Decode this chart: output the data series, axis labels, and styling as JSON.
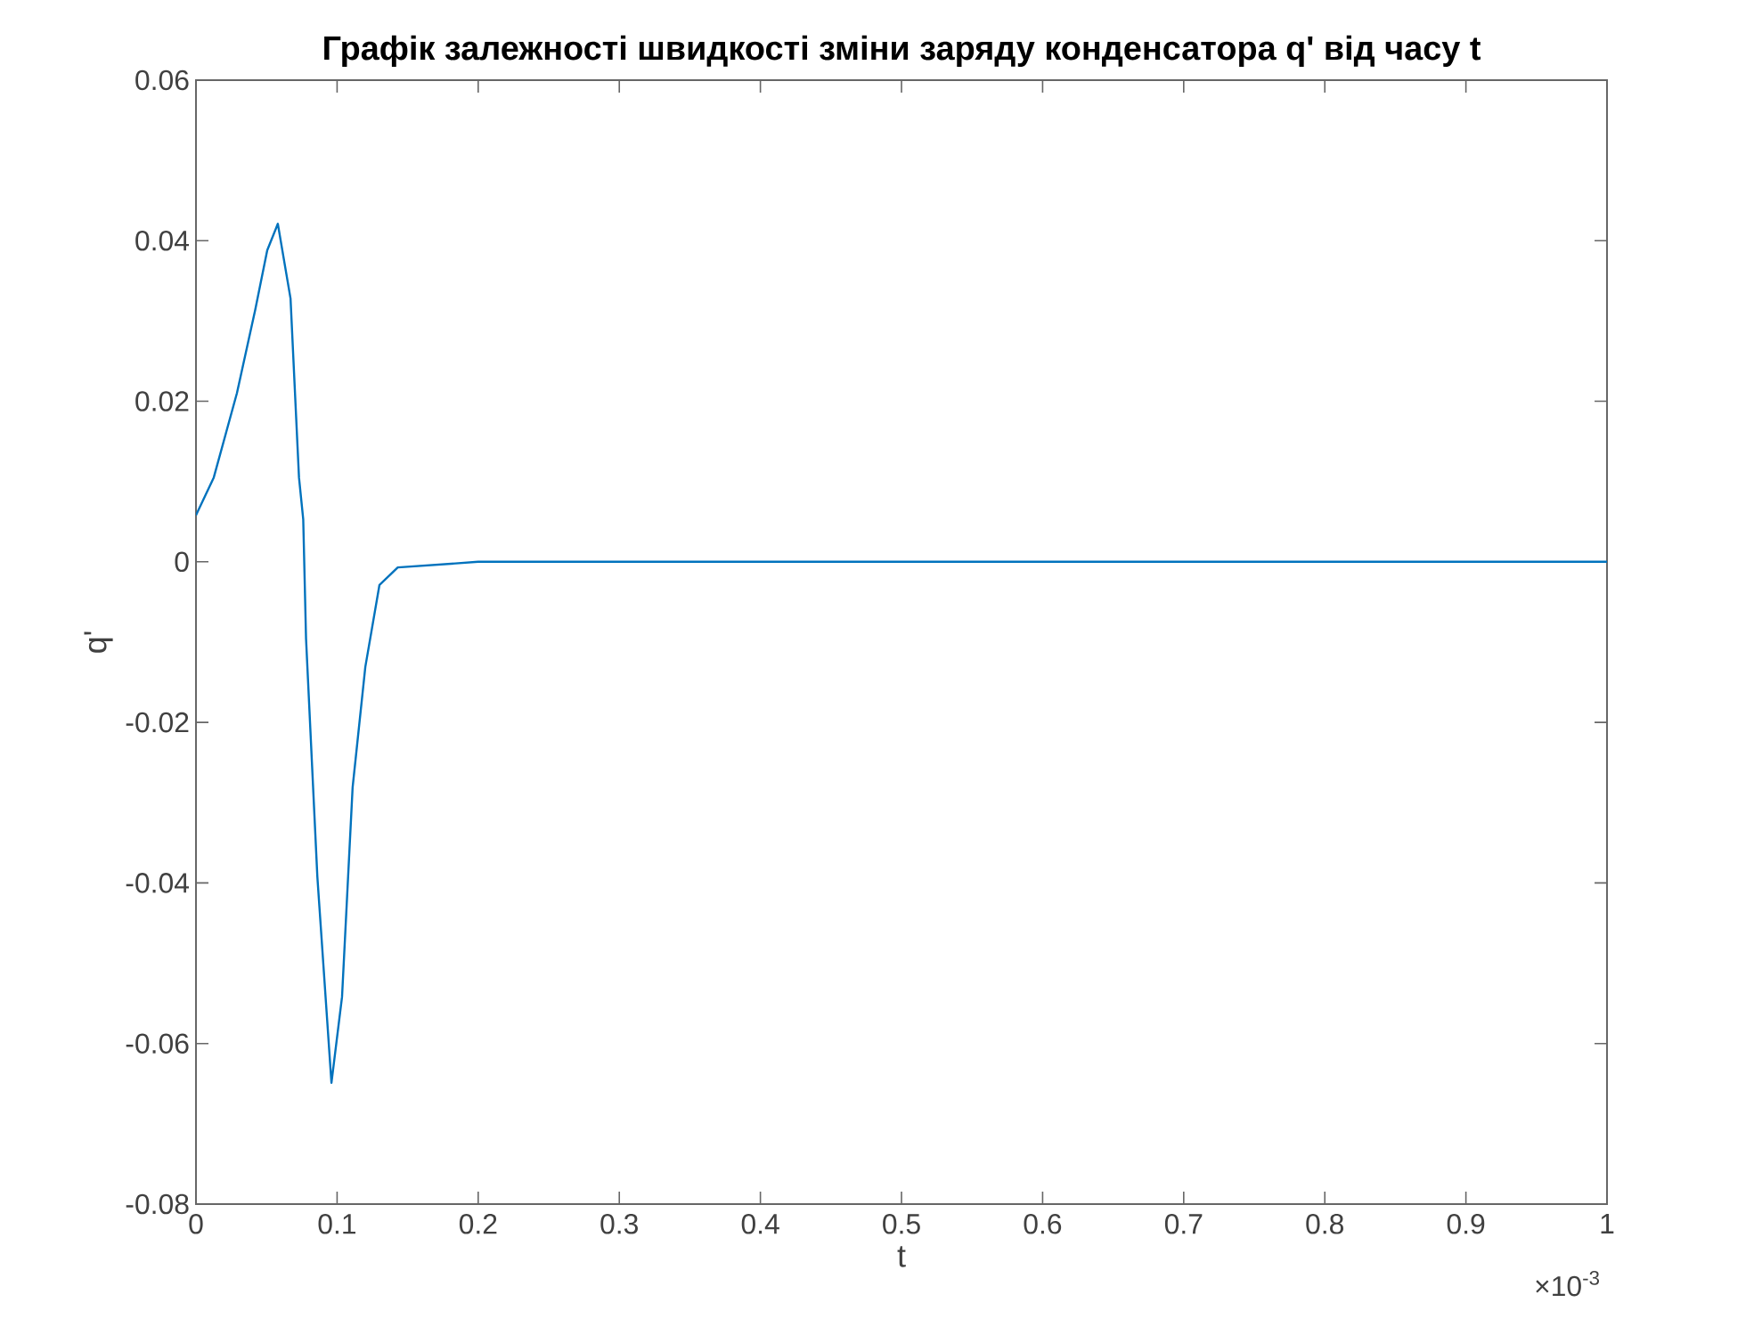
{
  "chart_data": {
    "type": "line",
    "title": "Графік залежності швидкості зміни заряду конденсатора  q' від часу t",
    "xlabel": "t",
    "ylabel": "q'",
    "annotations": [
      "×10$^{-3}$"
    ],
    "x": [
      0,
      0.0126,
      0.029,
      0.042,
      0.0505,
      0.058,
      0.067,
      0.073,
      0.076,
      0.078,
      0.086,
      0.096,
      0.1035,
      0.111,
      0.12,
      0.13,
      0.143,
      0.2,
      0.3,
      0.5,
      0.7,
      1
    ],
    "series": [
      {
        "color": "#0072bd",
        "values": [
          0.0058,
          0.0105,
          0.021,
          0.0314,
          0.0388,
          0.0421,
          0.0328,
          0.0105,
          0.0053,
          -0.0096,
          -0.0392,
          -0.0649,
          -0.0542,
          -0.0281,
          -0.0131,
          -0.0029,
          -0.0007,
          0,
          0,
          0,
          0,
          0
        ]
      }
    ],
    "xlim": [
      0,
      1
    ],
    "xticks": [
      0,
      0.1,
      0.2,
      0.3,
      0.4,
      0.5,
      0.6,
      0.7,
      0.8,
      0.9,
      1
    ],
    "ylim": [
      -0.08,
      0.06
    ],
    "yticks": [
      -0.08,
      -0.06,
      -0.04,
      -0.02,
      0,
      0.02,
      0.04,
      0.06
    ],
    "grid": false,
    "legend": false,
    "marker": "none",
    "line_style": "solid"
  }
}
